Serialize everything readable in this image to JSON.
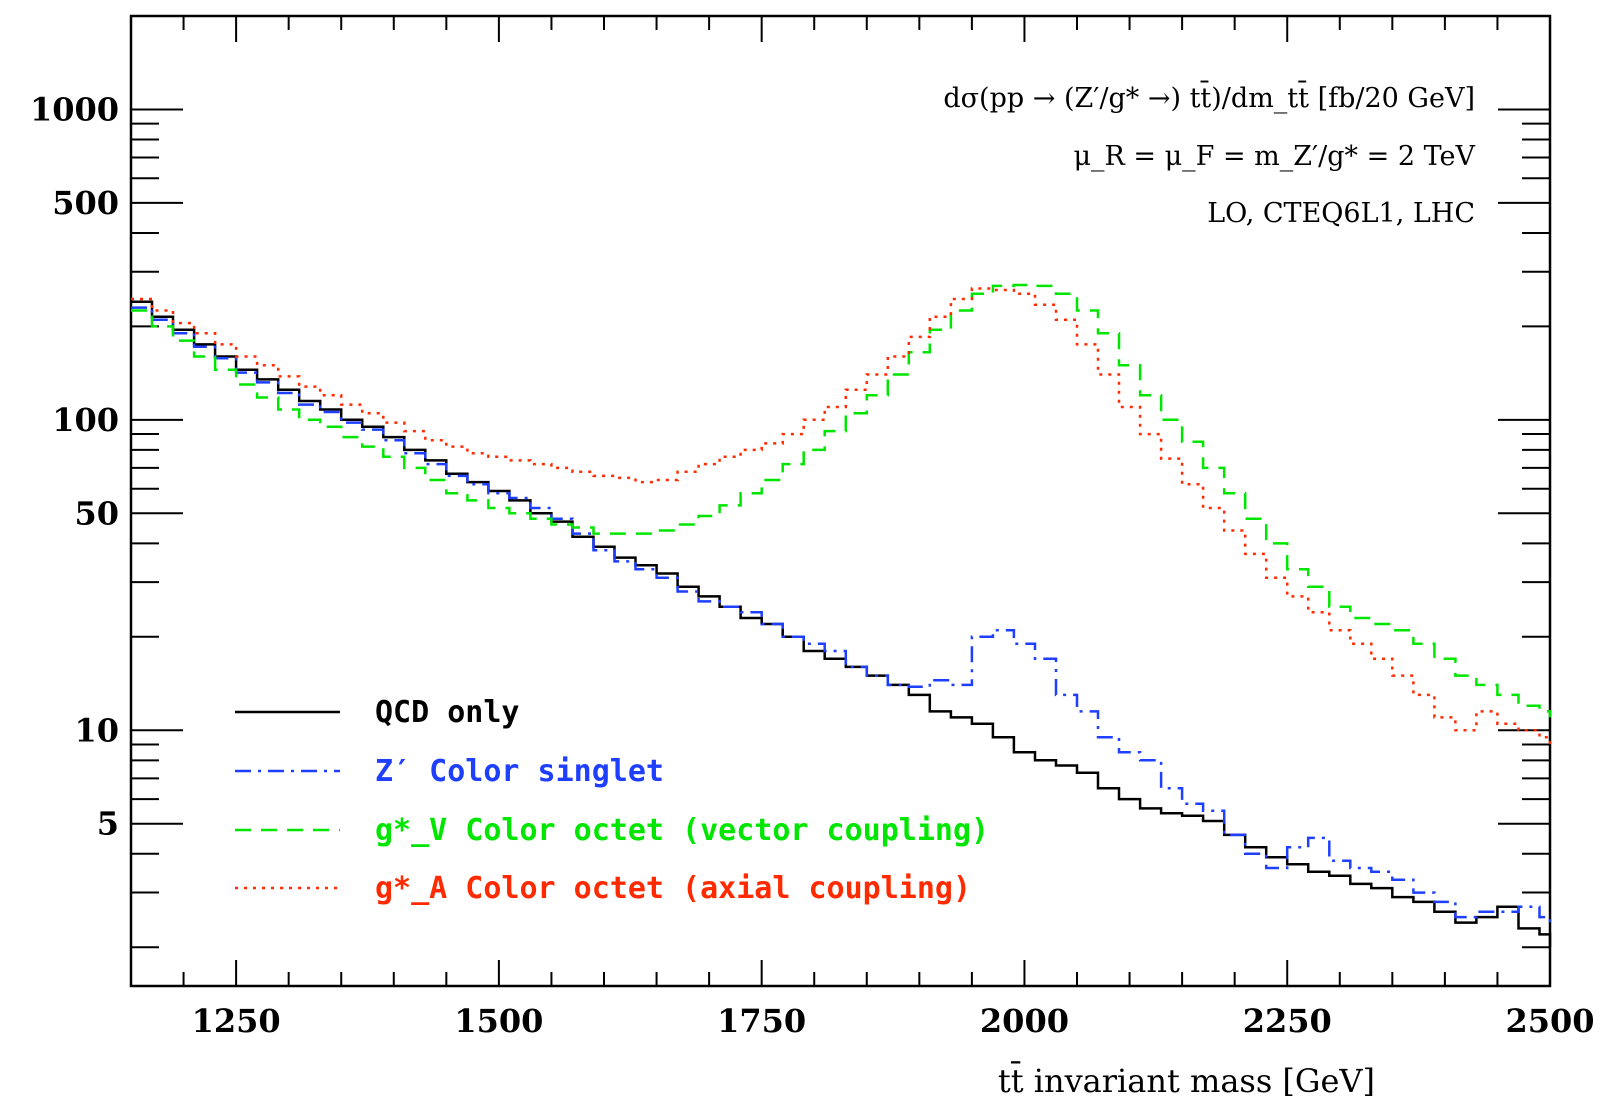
{
  "chart_data": {
    "type": "line",
    "xlabel": "tt̄ invariant mass [GeV]",
    "annotations": [
      "dσ(pp → (Z′/g* →) tt̄)/dm_tt̄  [fb/20 GeV]",
      "μ_R = μ_F = m_Z′/g* = 2 TeV",
      "LO, CTEQ6L1, LHC"
    ],
    "xlim": [
      1150,
      2500
    ],
    "ylim": [
      1.5,
      2000
    ],
    "yscale": "log",
    "x_ticks": [
      1250,
      1500,
      1750,
      2000,
      2250,
      2500
    ],
    "y_ticks": [
      1000,
      500,
      100,
      50,
      10,
      5
    ],
    "legend_position": "bottom-left",
    "bin_width": 20,
    "bin_edges": [
      1150,
      1170,
      1190,
      1210,
      1230,
      1250,
      1270,
      1290,
      1310,
      1330,
      1350,
      1370,
      1390,
      1410,
      1430,
      1450,
      1470,
      1490,
      1510,
      1530,
      1550,
      1570,
      1590,
      1610,
      1630,
      1650,
      1670,
      1690,
      1710,
      1730,
      1750,
      1770,
      1790,
      1810,
      1830,
      1850,
      1870,
      1890,
      1910,
      1930,
      1950,
      1970,
      1990,
      2010,
      2030,
      2050,
      2070,
      2090,
      2110,
      2130,
      2150,
      2170,
      2190,
      2210,
      2230,
      2250,
      2270,
      2290,
      2310,
      2330,
      2350,
      2370,
      2390,
      2410,
      2430,
      2450,
      2470,
      2490,
      2500
    ],
    "series": [
      {
        "name": "QCD only",
        "color": "#000000",
        "dash": "solid",
        "values": [
          240,
          215,
          195,
          175,
          160,
          145,
          135,
          125,
          115,
          108,
          100,
          95,
          88,
          80,
          74,
          67,
          63,
          59,
          55,
          50,
          47,
          42,
          39,
          36,
          34,
          32,
          29,
          27,
          25,
          23,
          22,
          20,
          18,
          17,
          16,
          15,
          14,
          13,
          11.5,
          11,
          10.5,
          9.5,
          8.5,
          8,
          7.7,
          7.3,
          6.5,
          6,
          5.6,
          5.4,
          5.3,
          5.1,
          4.6,
          4.2,
          3.9,
          3.7,
          3.5,
          3.4,
          3.2,
          3.1,
          2.9,
          2.8,
          2.6,
          2.4,
          2.5,
          2.7,
          2.3,
          2.2,
          2.0
        ]
      },
      {
        "name": "Z′ Color singlet",
        "color": "#1f3fff",
        "dash": "dashdot",
        "values": [
          230,
          210,
          190,
          172,
          158,
          142,
          132,
          122,
          112,
          106,
          98,
          93,
          86,
          78,
          72,
          66,
          62,
          58,
          56,
          52,
          48,
          43,
          38,
          35,
          33,
          31,
          28,
          26,
          25,
          24,
          22,
          20,
          19,
          18,
          16,
          15,
          14,
          13.8,
          14.5,
          14,
          20,
          21,
          19,
          17,
          13,
          11.5,
          9.5,
          8.5,
          8,
          6.5,
          5.8,
          5.5,
          4.6,
          4,
          3.6,
          4.2,
          4.5,
          3.8,
          3.6,
          3.5,
          3.3,
          3.0,
          2.8,
          2.5,
          2.6,
          2.6,
          2.7,
          2.5,
          2.3
        ]
      },
      {
        "name": "g*_V Color octet (vector coupling)",
        "color": "#00e600",
        "dash": "dashed",
        "values": [
          225,
          200,
          180,
          160,
          145,
          130,
          118,
          108,
          100,
          95,
          88,
          82,
          76,
          70,
          64,
          58,
          55,
          52,
          50,
          48,
          46,
          45,
          43,
          43,
          43,
          44,
          46,
          49,
          53,
          58,
          64,
          72,
          80,
          92,
          105,
          120,
          140,
          165,
          195,
          225,
          255,
          270,
          272,
          270,
          255,
          225,
          190,
          150,
          120,
          100,
          85,
          70,
          58,
          48,
          40,
          33,
          29,
          25,
          23,
          22,
          21,
          19,
          17,
          15,
          14,
          13,
          12,
          11.5,
          11
        ]
      },
      {
        "name": "g*_A Color octet (axial coupling)",
        "color": "#ff2a00",
        "dash": "dotted",
        "values": [
          245,
          225,
          205,
          190,
          175,
          160,
          150,
          138,
          128,
          120,
          112,
          105,
          98,
          92,
          86,
          82,
          78,
          76,
          74,
          72,
          70,
          68,
          66,
          65,
          63,
          64,
          68,
          72,
          76,
          80,
          84,
          90,
          100,
          110,
          125,
          140,
          160,
          185,
          215,
          245,
          265,
          262,
          255,
          235,
          210,
          175,
          140,
          110,
          90,
          75,
          62,
          52,
          44,
          37,
          31,
          27,
          24,
          21,
          19,
          17,
          15,
          13,
          11,
          10,
          11.5,
          10.5,
          10,
          9.5,
          9
        ]
      }
    ]
  }
}
